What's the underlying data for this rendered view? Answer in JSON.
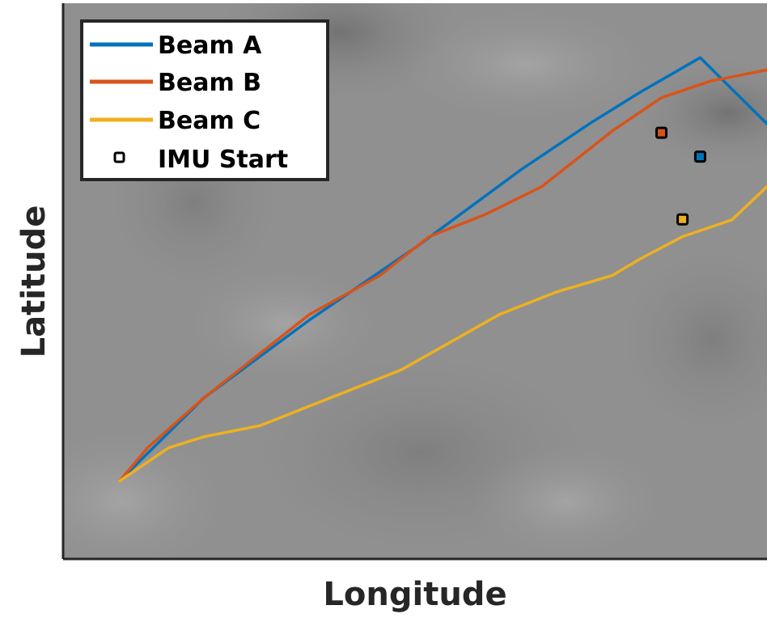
{
  "chart_data": {
    "type": "line",
    "xlabel": "Longitude",
    "ylabel": "Latitude",
    "xlim": [
      0,
      100
    ],
    "ylim": [
      0,
      100
    ],
    "grid": false,
    "legend_position": "top-left",
    "background": "grayscale terrain map",
    "series": [
      {
        "name": "Beam A",
        "color": "#0072BD",
        "x": [
          8,
          20,
          35,
          50,
          65,
          75,
          82,
          90.5,
          100
        ],
        "y": [
          14,
          29,
          43,
          56,
          70,
          78.5,
          84,
          90.2,
          78.3
        ],
        "imu_start": [
          90.5,
          72.4
        ]
      },
      {
        "name": "Beam B",
        "color": "#D95319",
        "x": [
          8,
          12,
          20,
          28,
          35,
          45,
          52,
          60,
          68,
          75,
          78,
          85,
          92,
          100
        ],
        "y": [
          14,
          20,
          29,
          37,
          44,
          51,
          58,
          62,
          67,
          74,
          77,
          83,
          86,
          88
        ],
        "imu_start": [
          85,
          76.7
        ]
      },
      {
        "name": "Beam C",
        "color": "#EDB120",
        "x": [
          8,
          15,
          20,
          28,
          32,
          40,
          48,
          55,
          62,
          70,
          78,
          82,
          88,
          95,
          100
        ],
        "y": [
          14,
          20,
          22,
          24,
          26,
          30,
          34,
          39,
          44,
          48,
          51,
          54,
          58,
          61,
          67
        ],
        "imu_start": [
          88,
          61.1
        ]
      }
    ],
    "legend": [
      "Beam A",
      "Beam B",
      "Beam C",
      "IMU Start"
    ]
  }
}
